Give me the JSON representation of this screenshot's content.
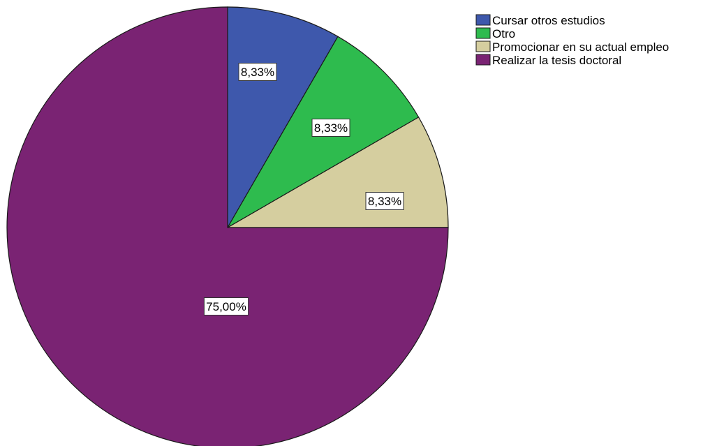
{
  "chart_data": {
    "type": "pie",
    "title": "",
    "legend_position": "top-right",
    "slices": [
      {
        "label": "Cursar otros estudios",
        "value": 8.33,
        "data_label": "8,33%",
        "color": "#3e58ac"
      },
      {
        "label": "Otro",
        "value": 8.33,
        "data_label": "8,33%",
        "color": "#2ebb4e"
      },
      {
        "label": "Promocionar en su actual empleo",
        "value": 8.33,
        "data_label": "8,33%",
        "color": "#d5ce9f"
      },
      {
        "label": "Realizar la tesis doctoral",
        "value": 75.0,
        "data_label": "75,00%",
        "color": "#7a2373"
      }
    ]
  }
}
